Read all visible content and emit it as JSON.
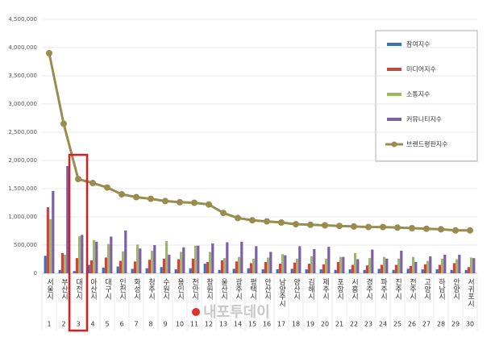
{
  "chart_data": {
    "type": "bar-line",
    "categories": [
      "서울시",
      "부산시",
      "대전시",
      "아산시",
      "대구시",
      "인천시",
      "화성시",
      "청주시",
      "수원시",
      "용인시",
      "천안시",
      "창원시",
      "울산시",
      "광주시",
      "평택시",
      "안산시",
      "남양주시",
      "양산시",
      "김해시",
      "제주시",
      "포항시",
      "시흥시",
      "경주시",
      "파주시",
      "진주시",
      "전주시",
      "고양시",
      "하남시",
      "안양시",
      "서귀포시"
    ],
    "ranks": [
      1,
      2,
      3,
      4,
      5,
      6,
      7,
      8,
      9,
      10,
      11,
      12,
      13,
      14,
      15,
      16,
      17,
      18,
      19,
      20,
      21,
      22,
      23,
      24,
      25,
      26,
      27,
      28,
      29,
      30
    ],
    "series": [
      {
        "name": "참여지수",
        "color": "#3f6fb6",
        "kind": "bar",
        "values": [
          310000,
          60000,
          40000,
          150000,
          100000,
          120000,
          80000,
          90000,
          110000,
          70000,
          90000,
          170000,
          60000,
          80000,
          90000,
          70000,
          70000,
          80000,
          70000,
          70000,
          60000,
          70000,
          60000,
          80000,
          60000,
          80000,
          70000,
          70000,
          60000,
          60000
        ]
      },
      {
        "name": "미디어지수",
        "color": "#be4b48",
        "kind": "bar",
        "values": [
          1170000,
          360000,
          270000,
          230000,
          280000,
          220000,
          210000,
          240000,
          260000,
          250000,
          260000,
          200000,
          230000,
          210000,
          180000,
          200000,
          170000,
          190000,
          170000,
          160000,
          200000,
          150000,
          140000,
          150000,
          150000,
          130000,
          160000,
          150000,
          180000,
          110000
        ]
      },
      {
        "name": "소통지수",
        "color": "#9bbb59",
        "kind": "bar",
        "values": [
          960000,
          330000,
          660000,
          590000,
          520000,
          390000,
          510000,
          400000,
          570000,
          380000,
          490000,
          380000,
          270000,
          290000,
          260000,
          280000,
          340000,
          260000,
          300000,
          260000,
          290000,
          360000,
          270000,
          290000,
          260000,
          290000,
          220000,
          260000,
          250000,
          280000
        ]
      },
      {
        "name": "커뮤니티지수",
        "color": "#7d60a0",
        "kind": "bar",
        "values": [
          1460000,
          1900000,
          680000,
          560000,
          650000,
          760000,
          440000,
          500000,
          330000,
          460000,
          490000,
          530000,
          550000,
          560000,
          480000,
          380000,
          320000,
          480000,
          430000,
          470000,
          290000,
          250000,
          420000,
          260000,
          400000,
          200000,
          300000,
          330000,
          330000,
          270000
        ]
      },
      {
        "name": "브랜드평판지수",
        "color": "#998c4f",
        "kind": "line",
        "values": [
          3900000,
          2650000,
          1670000,
          1600000,
          1520000,
          1400000,
          1350000,
          1320000,
          1280000,
          1260000,
          1250000,
          1220000,
          1070000,
          980000,
          940000,
          920000,
          900000,
          870000,
          860000,
          850000,
          840000,
          830000,
          820000,
          820000,
          810000,
          800000,
          790000,
          780000,
          760000,
          760000
        ]
      }
    ],
    "ylim": [
      0,
      4500000
    ],
    "yticks": [
      0,
      {
        "value": 500000,
        "label": "500,000"
      },
      {
        "value": 1000000,
        "label": "1,000,000"
      },
      {
        "value": 1500000,
        "label": "1,500,000"
      },
      {
        "value": 2000000,
        "label": "2,000,000"
      },
      {
        "value": 2500000,
        "label": "2,500,000"
      },
      {
        "value": 3000000,
        "label": "3,000,000"
      },
      {
        "value": 3500000,
        "label": "3,500,000"
      },
      {
        "value": 4000000,
        "label": "4,000,000"
      },
      {
        "value": 4500000,
        "label": "4,500,000"
      }
    ],
    "grid": true,
    "legend": "upper right",
    "watermark": "내포투데이"
  }
}
